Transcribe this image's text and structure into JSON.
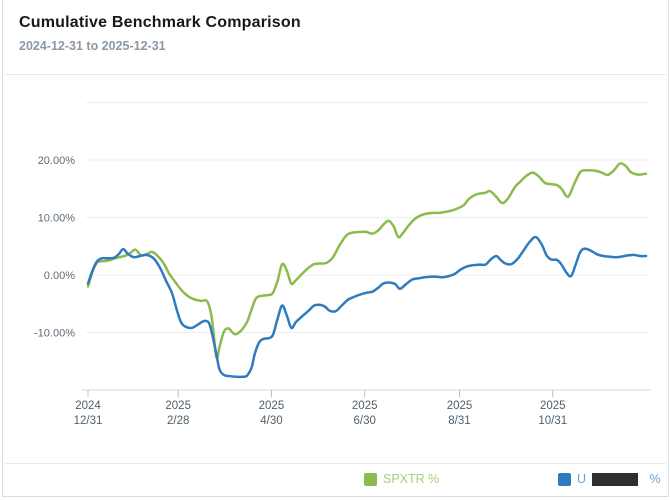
{
  "header": {
    "title": "Cumulative Benchmark Comparison",
    "subtitle": "2024-12-31 to 2025-12-31"
  },
  "legend": {
    "items": [
      {
        "label": "SPXTR %",
        "color": "#8cbb4d",
        "redacted": false
      },
      {
        "label_prefix": "U",
        "label_suffix": " %",
        "redacted": true,
        "color": "#2e7cbd",
        "redaction_color": "#2e2e2e"
      }
    ]
  },
  "chart_data": {
    "type": "line",
    "title": "Cumulative Benchmark Comparison",
    "date_range": "2024-12-31 to 2025-12-31",
    "grid": true,
    "legend_position": "bottom-right",
    "colors": {
      "grid": "#ededed",
      "axis_line": "#ccd8e0",
      "tick_mark": "#a9c3d4",
      "y_label": "#5d6c78",
      "x_label": "#51606b"
    },
    "y_axis": {
      "unit": "percent",
      "ticks": [
        {
          "label": "20.00%",
          "value": 20
        },
        {
          "label": "10.00%",
          "value": 10
        },
        {
          "label": "0.00%",
          "value": 0
        },
        {
          "label": "-10.00%",
          "value": -10
        }
      ],
      "gridline_values": [
        30,
        20,
        10,
        0,
        -10
      ],
      "axis_bottom_value": -20
    },
    "x_axis": {
      "unit": "date",
      "range_days": [
        0,
        365
      ],
      "ticks": [
        {
          "year": "2024",
          "date": "12/31",
          "day": 0
        },
        {
          "year": "2025",
          "date": "2/28",
          "day": 59
        },
        {
          "year": "2025",
          "date": "4/30",
          "day": 120
        },
        {
          "year": "2025",
          "date": "6/30",
          "day": 181
        },
        {
          "year": "2025",
          "date": "8/31",
          "day": 243
        },
        {
          "year": "2025",
          "date": "10/31",
          "day": 304
        }
      ]
    },
    "series": [
      {
        "name": "SPXTR %",
        "color": "#8cbb4d",
        "points": [
          [
            0,
            -2.0
          ],
          [
            3,
            0.6
          ],
          [
            6,
            2.2
          ],
          [
            10,
            2.4
          ],
          [
            13,
            2.5
          ],
          [
            19,
            3.0
          ],
          [
            25,
            3.4
          ],
          [
            28,
            3.9
          ],
          [
            31,
            4.4
          ],
          [
            35,
            3.4
          ],
          [
            39,
            3.7
          ],
          [
            42,
            4.0
          ],
          [
            46,
            3.2
          ],
          [
            50,
            1.8
          ],
          [
            53,
            0.3
          ],
          [
            57,
            -1.2
          ],
          [
            61,
            -2.6
          ],
          [
            65,
            -3.6
          ],
          [
            69,
            -4.2
          ],
          [
            74,
            -4.5
          ],
          [
            78,
            -4.6
          ],
          [
            81,
            -7.5
          ],
          [
            84,
            -14.3
          ],
          [
            86,
            -12.5
          ],
          [
            89,
            -9.8
          ],
          [
            92,
            -9.3
          ],
          [
            96,
            -10.3
          ],
          [
            100,
            -9.7
          ],
          [
            104,
            -8.2
          ],
          [
            107,
            -6.0
          ],
          [
            110,
            -4.0
          ],
          [
            114,
            -3.6
          ],
          [
            118,
            -3.5
          ],
          [
            121,
            -3.1
          ],
          [
            124,
            -1.0
          ],
          [
            127,
            1.9
          ],
          [
            130,
            0.8
          ],
          [
            133,
            -1.5
          ],
          [
            136,
            -0.9
          ],
          [
            140,
            0.2
          ],
          [
            144,
            1.2
          ],
          [
            148,
            1.9
          ],
          [
            152,
            2.0
          ],
          [
            156,
            2.1
          ],
          [
            160,
            3.0
          ],
          [
            164,
            4.9
          ],
          [
            167,
            6.2
          ],
          [
            170,
            7.1
          ],
          [
            174,
            7.4
          ],
          [
            178,
            7.5
          ],
          [
            182,
            7.5
          ],
          [
            186,
            7.2
          ],
          [
            190,
            7.8
          ],
          [
            194,
            9.0
          ],
          [
            197,
            9.4
          ],
          [
            200,
            8.4
          ],
          [
            203,
            6.6
          ],
          [
            206,
            7.3
          ],
          [
            210,
            8.7
          ],
          [
            214,
            9.8
          ],
          [
            218,
            10.4
          ],
          [
            222,
            10.7
          ],
          [
            226,
            10.8
          ],
          [
            230,
            10.8
          ],
          [
            234,
            11.0
          ],
          [
            238,
            11.2
          ],
          [
            242,
            11.6
          ],
          [
            246,
            12.2
          ],
          [
            249,
            13.2
          ],
          [
            253,
            13.9
          ],
          [
            257,
            14.2
          ],
          [
            260,
            14.3
          ],
          [
            263,
            14.6
          ],
          [
            267,
            13.6
          ],
          [
            271,
            12.5
          ],
          [
            275,
            13.4
          ],
          [
            279,
            15.2
          ],
          [
            283,
            16.3
          ],
          [
            287,
            17.3
          ],
          [
            291,
            17.8
          ],
          [
            295,
            17.1
          ],
          [
            299,
            16.0
          ],
          [
            303,
            15.8
          ],
          [
            307,
            15.6
          ],
          [
            310,
            14.9
          ],
          [
            314,
            13.6
          ],
          [
            318,
            15.8
          ],
          [
            322,
            17.9
          ],
          [
            326,
            18.2
          ],
          [
            330,
            18.2
          ],
          [
            334,
            18.0
          ],
          [
            337,
            17.7
          ],
          [
            340,
            17.4
          ],
          [
            344,
            18.2
          ],
          [
            348,
            19.4
          ],
          [
            352,
            18.9
          ],
          [
            355,
            17.9
          ],
          [
            359,
            17.5
          ],
          [
            362,
            17.5
          ],
          [
            365,
            17.6
          ]
        ]
      },
      {
        "name_visible_prefix": "U",
        "name_visible_suffix": " %",
        "name_redacted": true,
        "color": "#2e7cbd",
        "points": [
          [
            0,
            -1.5
          ],
          [
            3,
            0.8
          ],
          [
            6,
            2.4
          ],
          [
            9,
            2.9
          ],
          [
            13,
            2.9
          ],
          [
            17,
            3.0
          ],
          [
            20,
            3.6
          ],
          [
            23,
            4.5
          ],
          [
            26,
            3.7
          ],
          [
            30,
            3.1
          ],
          [
            34,
            3.3
          ],
          [
            38,
            3.5
          ],
          [
            42,
            3.1
          ],
          [
            45,
            2.2
          ],
          [
            48,
            0.8
          ],
          [
            51,
            -1.0
          ],
          [
            55,
            -3.2
          ],
          [
            58,
            -6.0
          ],
          [
            61,
            -8.3
          ],
          [
            64,
            -9.0
          ],
          [
            68,
            -9.2
          ],
          [
            72,
            -8.6
          ],
          [
            76,
            -8.0
          ],
          [
            79,
            -8.3
          ],
          [
            81,
            -10.0
          ],
          [
            84,
            -13.8
          ],
          [
            86,
            -16.4
          ],
          [
            89,
            -17.4
          ],
          [
            93,
            -17.6
          ],
          [
            97,
            -17.7
          ],
          [
            101,
            -17.7
          ],
          [
            104,
            -17.5
          ],
          [
            107,
            -16.1
          ],
          [
            109,
            -13.8
          ],
          [
            112,
            -11.7
          ],
          [
            115,
            -11.1
          ],
          [
            118,
            -11.0
          ],
          [
            121,
            -10.4
          ],
          [
            124,
            -7.6
          ],
          [
            127,
            -5.3
          ],
          [
            130,
            -7.0
          ],
          [
            133,
            -9.2
          ],
          [
            136,
            -8.2
          ],
          [
            140,
            -7.2
          ],
          [
            144,
            -6.3
          ],
          [
            148,
            -5.3
          ],
          [
            152,
            -5.2
          ],
          [
            155,
            -5.5
          ],
          [
            158,
            -6.2
          ],
          [
            162,
            -6.3
          ],
          [
            166,
            -5.3
          ],
          [
            170,
            -4.3
          ],
          [
            174,
            -3.8
          ],
          [
            178,
            -3.4
          ],
          [
            182,
            -3.1
          ],
          [
            186,
            -2.9
          ],
          [
            190,
            -2.2
          ],
          [
            193,
            -1.5
          ],
          [
            197,
            -1.3
          ],
          [
            201,
            -1.6
          ],
          [
            204,
            -2.4
          ],
          [
            208,
            -1.6
          ],
          [
            212,
            -0.8
          ],
          [
            216,
            -0.6
          ],
          [
            220,
            -0.4
          ],
          [
            224,
            -0.3
          ],
          [
            228,
            -0.3
          ],
          [
            232,
            -0.4
          ],
          [
            236,
            -0.2
          ],
          [
            240,
            0.2
          ],
          [
            244,
            1.0
          ],
          [
            248,
            1.5
          ],
          [
            252,
            1.7
          ],
          [
            256,
            1.8
          ],
          [
            260,
            1.8
          ],
          [
            263,
            2.6
          ],
          [
            267,
            3.3
          ],
          [
            270,
            2.6
          ],
          [
            273,
            2.0
          ],
          [
            277,
            1.9
          ],
          [
            281,
            2.8
          ],
          [
            285,
            4.3
          ],
          [
            289,
            5.8
          ],
          [
            293,
            6.6
          ],
          [
            297,
            5.2
          ],
          [
            300,
            3.4
          ],
          [
            303,
            2.7
          ],
          [
            307,
            2.6
          ],
          [
            310,
            1.7
          ],
          [
            313,
            0.4
          ],
          [
            316,
            -0.2
          ],
          [
            319,
            1.8
          ],
          [
            322,
            4.0
          ],
          [
            325,
            4.6
          ],
          [
            329,
            4.2
          ],
          [
            333,
            3.6
          ],
          [
            337,
            3.3
          ],
          [
            341,
            3.2
          ],
          [
            345,
            3.1
          ],
          [
            349,
            3.2
          ],
          [
            353,
            3.4
          ],
          [
            357,
            3.5
          ],
          [
            361,
            3.3
          ],
          [
            365,
            3.3
          ]
        ]
      }
    ]
  }
}
